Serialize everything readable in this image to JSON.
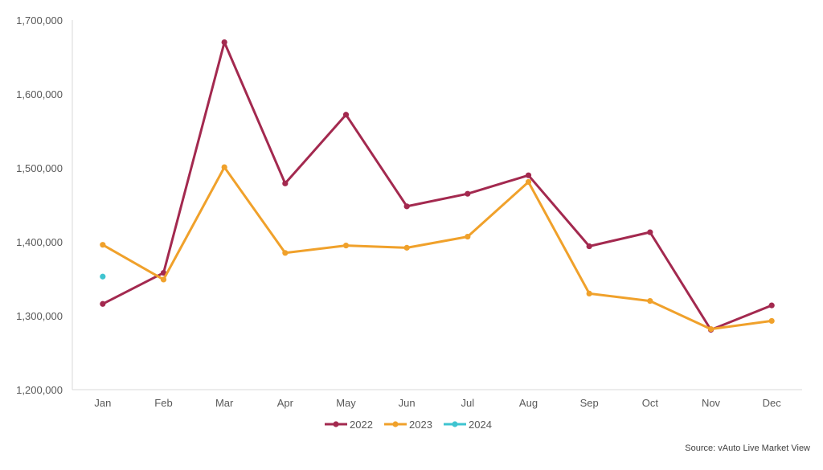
{
  "chart_data": {
    "type": "line",
    "title": "",
    "xlabel": "",
    "ylabel": "",
    "categories": [
      "Jan",
      "Feb",
      "Mar",
      "Apr",
      "May",
      "Jun",
      "Jul",
      "Aug",
      "Sep",
      "Oct",
      "Nov",
      "Dec"
    ],
    "ylim": [
      1200000,
      1700000
    ],
    "yticks": [
      1200000,
      1300000,
      1400000,
      1500000,
      1600000,
      1700000
    ],
    "ytick_labels": [
      "1,200,000",
      "1,300,000",
      "1,400,000",
      "1,500,000",
      "1,600,000",
      "1,700,000"
    ],
    "grid": false,
    "legend": "bottom",
    "series": [
      {
        "name": "2022",
        "color": "#A3294F",
        "values": [
          1316000,
          1358000,
          1670000,
          1479000,
          1572000,
          1448000,
          1465000,
          1490000,
          1394000,
          1413000,
          1281000,
          1314000
        ]
      },
      {
        "name": "2023",
        "color": "#F0A12B",
        "values": [
          1396000,
          1349000,
          1501000,
          1385000,
          1395000,
          1392000,
          1407000,
          1481000,
          1330000,
          1320000,
          1282000,
          1293000
        ]
      },
      {
        "name": "2024",
        "color": "#3FC4D0",
        "values": [
          1353000,
          null,
          null,
          null,
          null,
          null,
          null,
          null,
          null,
          null,
          null,
          null
        ]
      }
    ],
    "source": "Source: vAuto Live Market View"
  }
}
